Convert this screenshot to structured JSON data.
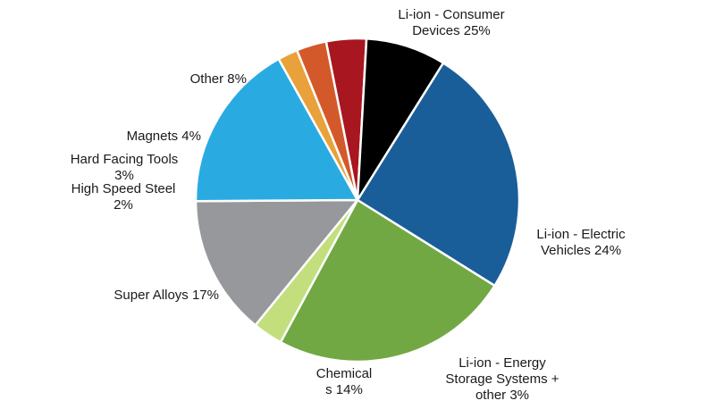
{
  "chart_data": {
    "type": "pie",
    "title": "",
    "start_angle_deg": -58,
    "direction": "clockwise",
    "slices": [
      {
        "label_lines": [
          "Li-ion - Consumer",
          "Devices 25%"
        ],
        "value": 25,
        "color": "#1a5e99"
      },
      {
        "label_lines": [
          "Li-ion - Electric",
          "Vehicles 24%"
        ],
        "value": 24,
        "color": "#72a843"
      },
      {
        "label_lines": [
          "Li-ion - Energy",
          "Storage Systems +",
          "other 3%"
        ],
        "value": 3,
        "color": "#c3de7d"
      },
      {
        "label_lines": [
          "Chemical",
          "s 14%"
        ],
        "value": 14,
        "color": "#96989c"
      },
      {
        "label_lines": [
          "Super Alloys 17%"
        ],
        "value": 17,
        "color": "#29abe2"
      },
      {
        "label_lines": [
          "High Speed Steel",
          "2%"
        ],
        "value": 2,
        "color": "#e8a13b"
      },
      {
        "label_lines": [
          "Hard Facing Tools",
          "3%"
        ],
        "value": 3,
        "color": "#d4592a"
      },
      {
        "label_lines": [
          "Magnets 4%"
        ],
        "value": 4,
        "color": "#a8161f"
      },
      {
        "label_lines": [
          "Other 8%"
        ],
        "value": 8,
        "color": "#000000"
      }
    ]
  }
}
